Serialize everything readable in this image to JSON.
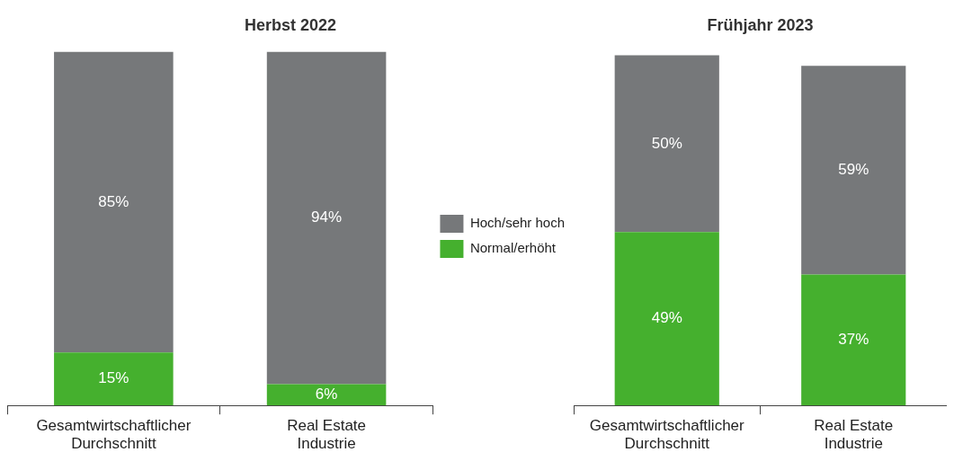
{
  "chart_data": [
    {
      "type": "bar",
      "title": "Herbst 2022",
      "categories": [
        "Gesamtwirtschaftlicher\nDurchschnitt",
        "Real Estate\nIndustrie"
      ],
      "stacked": true,
      "grid": false,
      "legend": "right",
      "tick_labels": "x",
      "series": [
        {
          "name": "Normal/erhöht",
          "color": "#45b02e",
          "values": [
            15,
            6
          ],
          "value_labels": [
            "15%",
            "6%"
          ]
        },
        {
          "name": "Hoch/sehr hoch",
          "color": "#76787a",
          "values": [
            85,
            94
          ],
          "value_labels": [
            "85%",
            "94%"
          ]
        }
      ]
    },
    {
      "type": "bar",
      "title": "Frühjahr 2023",
      "categories": [
        "Gesamtwirtschaftlicher\nDurchschnitt",
        "Real Estate\nIndustrie"
      ],
      "stacked": true,
      "grid": false,
      "legend": false,
      "tick_labels": "x",
      "series": [
        {
          "color": "#45b02e",
          "values": [
            49,
            37
          ],
          "value_labels": [
            "49%",
            "37%"
          ]
        },
        {
          "color": "#76787a",
          "values": [
            50,
            59
          ],
          "value_labels": [
            "50%",
            "59%"
          ]
        }
      ]
    }
  ]
}
